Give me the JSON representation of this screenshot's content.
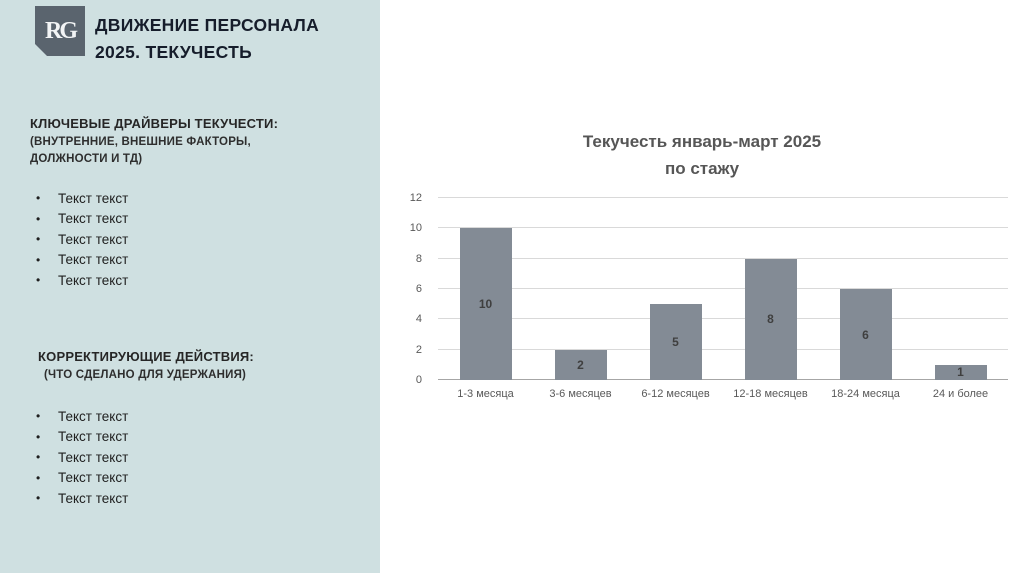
{
  "slide": {
    "logo_text": "RG",
    "title_line1": "ДВИЖЕНИЕ ПЕРСОНАЛА",
    "title_line2": "2025. ТЕКУЧЕСТЬ"
  },
  "sidebar": {
    "section1": {
      "heading": "КЛЮЧЕВЫЕ ДРАЙВЕРЫ ТЕКУЧЕСТИ:",
      "sub_line1": "(ВНУТРЕННИЕ, ВНЕШНИЕ ФАКТОРЫ,",
      "sub_line2": "ДОЛЖНОСТИ И ТД)",
      "bullets": [
        "Текст текст",
        "Текст текст",
        "Текст текст",
        "Текст текст",
        "Текст текст"
      ]
    },
    "section2": {
      "heading": "КОРРЕКТИРУЮЩИЕ ДЕЙСТВИЯ:",
      "sub_line1": "(ЧТО СДЕЛАНО ДЛЯ УДЕРЖАНИЯ)",
      "bullets": [
        "Текст текст",
        "Текст текст",
        "Текст текст",
        "Текст текст",
        "Текст текст"
      ]
    }
  },
  "chart_data": {
    "type": "bar",
    "title_line1": "Текучесть январь-март 2025",
    "title_line2": "по стажу",
    "categories": [
      "1-3 месяца",
      "3-6 месяцев",
      "6-12 месяцев",
      "12-18 месяцев",
      "18-24 месяца",
      "24 и более"
    ],
    "values": [
      10,
      2,
      5,
      8,
      6,
      1
    ],
    "ylim": [
      0,
      12
    ],
    "yticks": [
      0,
      2,
      4,
      6,
      8,
      10,
      12
    ],
    "grid": true,
    "legend": "none",
    "bar_color": "#838b95",
    "label_color": "#3f3f3f"
  },
  "colors": {
    "sidebar_bg": "#cfe0e1",
    "logo_bg": "#5a646e",
    "title_text": "#161d2b",
    "chart_text": "#595959"
  }
}
